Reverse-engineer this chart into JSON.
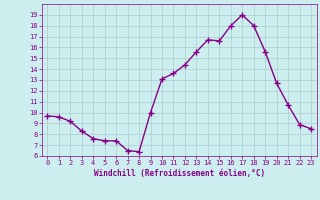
{
  "x": [
    0,
    1,
    2,
    3,
    4,
    5,
    6,
    7,
    8,
    9,
    10,
    11,
    12,
    13,
    14,
    15,
    16,
    17,
    18,
    19,
    20,
    21,
    22,
    23
  ],
  "y": [
    9.7,
    9.6,
    9.2,
    8.3,
    7.6,
    7.4,
    7.4,
    6.5,
    6.4,
    10.0,
    13.1,
    13.6,
    14.4,
    15.6,
    16.7,
    16.6,
    18.0,
    19.0,
    18.0,
    15.6,
    12.7,
    10.7,
    8.9,
    8.5
  ],
  "line_color": "#880088",
  "marker_color": "#880088",
  "bg_color": "#cceeee",
  "grid_color": "#aacccc",
  "xlabel": "Windchill (Refroidissement éolien,°C)",
  "xlabel_color": "#880088",
  "tick_color": "#880088",
  "ylim": [
    6,
    20
  ],
  "xlim": [
    -0.5,
    23.5
  ],
  "yticks": [
    6,
    7,
    8,
    9,
    10,
    11,
    12,
    13,
    14,
    15,
    16,
    17,
    18,
    19
  ],
  "xticks": [
    0,
    1,
    2,
    3,
    4,
    5,
    6,
    7,
    8,
    9,
    10,
    11,
    12,
    13,
    14,
    15,
    16,
    17,
    18,
    19,
    20,
    21,
    22,
    23
  ]
}
